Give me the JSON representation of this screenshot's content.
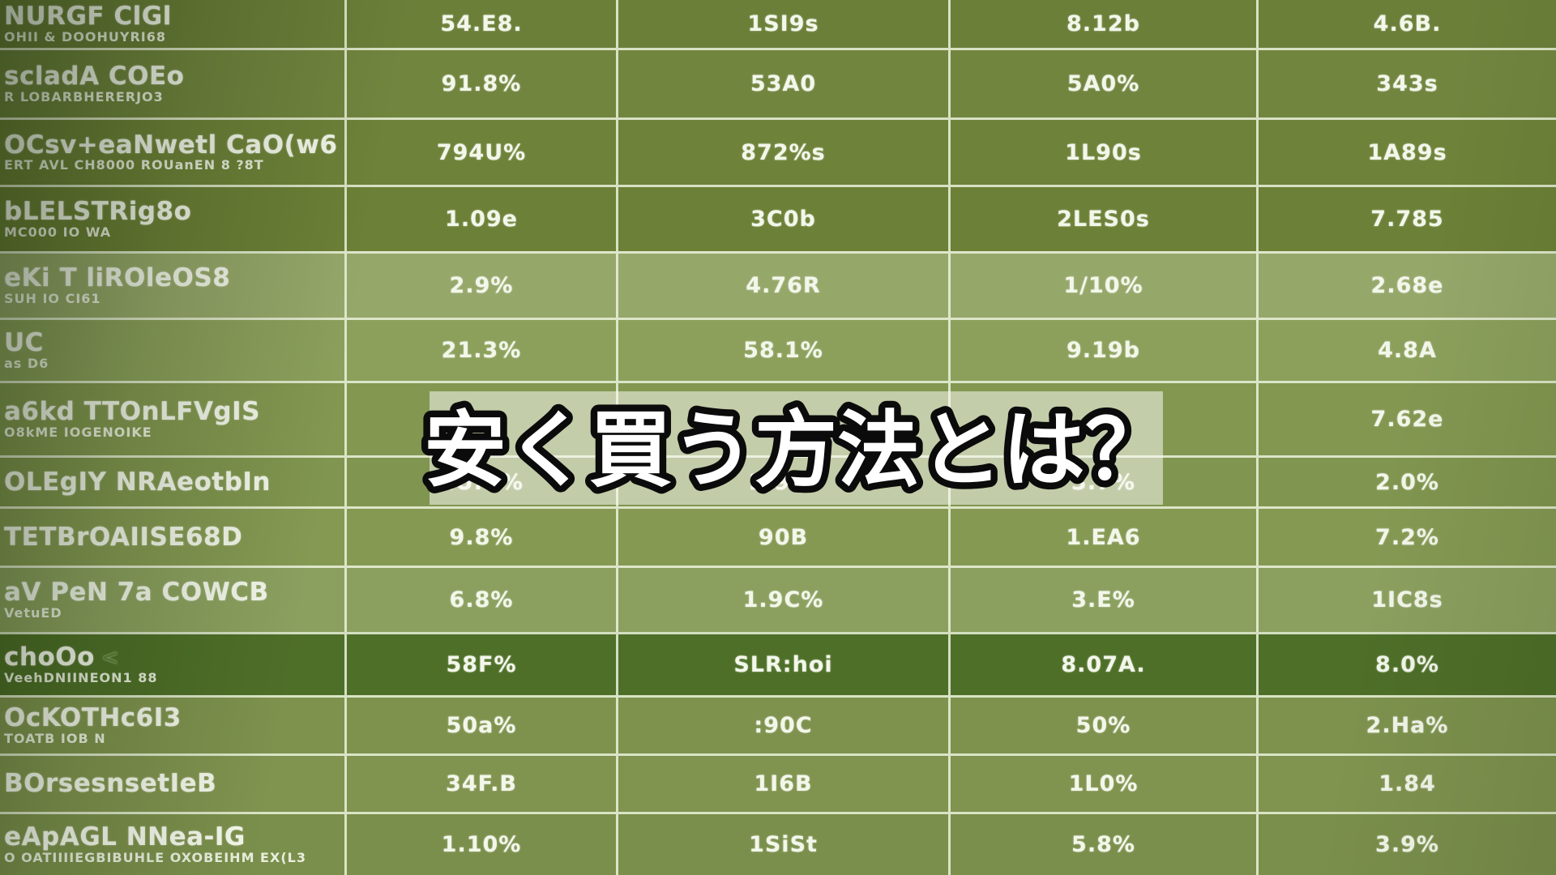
{
  "overlay": {
    "text": "安く買う方法とは？"
  },
  "colors": {
    "grid_line": "rgba(235,242,220,0.85)",
    "text": "#f3f7ea",
    "overlay_wash": "rgba(248,250,242,0.55)",
    "banner_fill": "#ffffff",
    "banner_stroke": "#0b0b0b",
    "dark_row": "#4e6f28",
    "base_green": "#6e8239"
  },
  "chart_data": {
    "type": "table",
    "title_overlay": "安く買う方法とは？",
    "header_visible": false,
    "note": "garbled pseudo-text table, best-effort transcription",
    "rows": [
      {
        "label": "NURGF ClGl",
        "sublabel": "OHII & DOOHUYRI68",
        "values": [
          "54.E8.",
          "1SI9s",
          "8.12b",
          "4.6B."
        ],
        "bg": "#6b7f39"
      },
      {
        "label": "scladA COEo",
        "sublabel": "R LOBARBHERERJO3",
        "values": [
          "91.8%",
          "53A0",
          "5A0%",
          "343s"
        ],
        "bg": "#71853f"
      },
      {
        "label": "OCsv+eaNwetl CaO(w6",
        "sublabel": "ERT AVL CH8000 ROUanEN 8   ?8T",
        "values": [
          "794U%",
          "872%s",
          "1L90s",
          "1A89s"
        ],
        "bg": "#6e8239"
      },
      {
        "label": "bLELSTRig8o",
        "sublabel": "MC000 IO WA",
        "values": [
          "1.09e",
          "3C0b",
          "2LES0s",
          "7.785"
        ],
        "bg": "#6c8037"
      },
      {
        "label": "eKi T liROleOS8",
        "sublabel": "SUH IO CI61",
        "values": [
          "2.9%",
          "4.76R",
          "1/10%",
          "2.68e"
        ],
        "bg": "#96a76a"
      },
      {
        "label": "UC",
        "sublabel": "as D6",
        "values": [
          "21.3%",
          "58.1%",
          "9.19b",
          "4.8A"
        ],
        "bg": "#8ca05c"
      },
      {
        "label": "a6kd TTOnLFVgIS",
        "sublabel": "O8kME IOGENOIKE",
        "values": [
          "",
          "",
          "",
          "7.62e"
        ],
        "bg": "#839751"
      },
      {
        "label": "OLEgIY NRAeotbIn",
        "sublabel": "",
        "values": [
          "2U.V%",
          "2.9A.",
          "3.7%",
          "2.0%"
        ],
        "bg": "#80954f"
      },
      {
        "label": "TETBrOAIISE68D",
        "sublabel": "",
        "values": [
          "9.8%",
          "90B",
          "1.EA6",
          "7.2%"
        ],
        "bg": "#859953"
      },
      {
        "label": "aV PeN 7a COWCB",
        "sublabel": "VetuED",
        "values": [
          "6.8%",
          "1.9C%",
          "3.E%",
          "1IC8s"
        ],
        "bg": "#8ba05f"
      },
      {
        "label": "choOo",
        "sublabel": "VeehDNIINEON1 88",
        "arrow": "<",
        "values": [
          "58F%",
          "SLR:hoi",
          "8.07A.",
          "8.0%"
        ],
        "bg": "#4e6f28"
      },
      {
        "label": "OcKOTHc6I3",
        "sublabel": "TOATB IOB N",
        "values": [
          "50a%",
          ":90C",
          "50%",
          "2.Ha%"
        ],
        "bg": "#7e924e"
      },
      {
        "label": "BOrsesnsetIeB",
        "sublabel": "",
        "values": [
          "34F.B",
          "1I6B",
          "1L0%",
          "1.84"
        ],
        "bg": "#80934f"
      },
      {
        "label": "eApAGL NNea-IG",
        "sublabel": "O OATIIIIEGBIBUHLE OXOBEIHM EX(L3",
        "values": [
          "1.10%",
          "1SiSt",
          "5.8%",
          "3.9%"
        ],
        "bg": "#7b8f4c"
      }
    ]
  }
}
